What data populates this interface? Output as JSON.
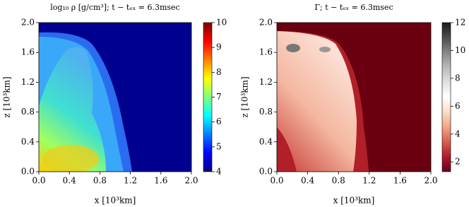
{
  "chart_data": [
    {
      "type": "heatmap",
      "title": "log₁₀ ρ [g/cm³]; t − tₑₓ = 6.3msec",
      "xlabel": "x [10³km]",
      "ylabel": "z [10³km]",
      "xlim": [
        0,
        2
      ],
      "ylim": [
        0,
        2
      ],
      "xticks": [
        {
          "value": 0,
          "label": "0.0"
        },
        {
          "value": 0.4,
          "label": "0.4"
        },
        {
          "value": 0.8,
          "label": "0.8"
        },
        {
          "value": 1.2,
          "label": "1.2"
        },
        {
          "value": 1.6,
          "label": "1.6"
        },
        {
          "value": 2,
          "label": "2.0"
        }
      ],
      "yticks": [
        {
          "value": 0,
          "label": "0.0"
        },
        {
          "value": 0.4,
          "label": "0.4"
        },
        {
          "value": 0.8,
          "label": "0.8"
        },
        {
          "value": 1.2,
          "label": "1.2"
        },
        {
          "value": 1.6,
          "label": "1.6"
        },
        {
          "value": 2,
          "label": "2.0"
        }
      ],
      "colormap": "jet",
      "clim": [
        4,
        10
      ],
      "cticks": [
        4,
        5,
        6,
        7,
        8,
        9,
        10
      ]
    },
    {
      "type": "heatmap",
      "title": "Γ; t − tₑₓ = 6.3msec",
      "xlabel": "x [10³km]",
      "ylabel": "z [10³km]",
      "xlim": [
        0,
        2
      ],
      "ylim": [
        0,
        2
      ],
      "xticks": [
        {
          "value": 0,
          "label": "0.0"
        },
        {
          "value": 0.4,
          "label": "0.4"
        },
        {
          "value": 0.8,
          "label": "0.8"
        },
        {
          "value": 1.2,
          "label": "1.2"
        },
        {
          "value": 1.6,
          "label": "1.6"
        },
        {
          "value": 2,
          "label": "2.0"
        }
      ],
      "yticks": [
        {
          "value": 0,
          "label": "0.0"
        },
        {
          "value": 0.4,
          "label": "0.4"
        },
        {
          "value": 0.8,
          "label": "0.8"
        },
        {
          "value": 1.2,
          "label": "1.2"
        },
        {
          "value": 1.6,
          "label": "1.6"
        },
        {
          "value": 2,
          "label": "2.0"
        }
      ],
      "colormap": "RdGy_r",
      "clim": [
        1.3,
        12
      ],
      "cticks": [
        2,
        4,
        6,
        8,
        10,
        12
      ]
    }
  ]
}
